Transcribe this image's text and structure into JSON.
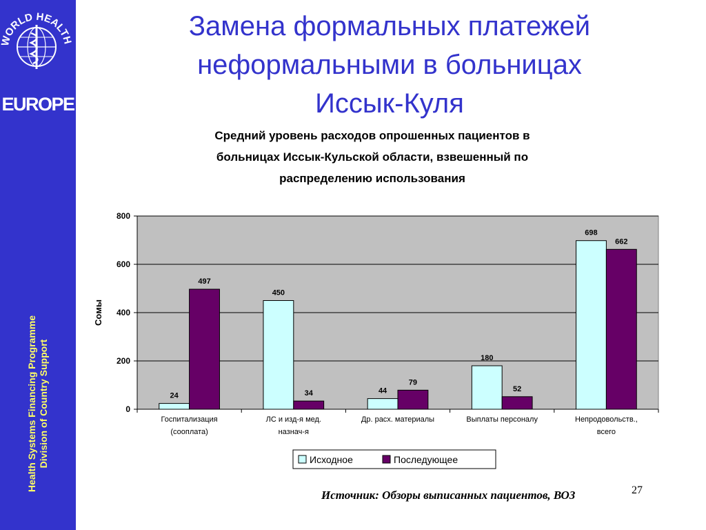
{
  "sidebar": {
    "logo_text": "EUROPE",
    "logo_ring_text": "WORLD HEALTH ORGANIZATION",
    "vertical_line1": "Health Systems Financing Programme",
    "vertical_line2": "Division of Country Support",
    "colors": {
      "background": "#3333cc",
      "text": "#ffff66"
    }
  },
  "slide": {
    "title_lines": [
      "Замена формальных платежей",
      "неформальными в больницах",
      "Иссык-Куля"
    ],
    "title_color": "#3333cc",
    "source": "Источник:  Обзоры выписанных пациентов, ВОЗ",
    "page_number": "27"
  },
  "chart_data": {
    "type": "bar",
    "title_lines": [
      "Средний уровень расходов опрошенных пациентов в",
      "больницах Иссык-Кульской области, взвешенный по",
      "распределению использования"
    ],
    "ylabel": "Сомы",
    "ylim": [
      0,
      800
    ],
    "yticks": [
      0,
      200,
      400,
      600,
      800
    ],
    "grid": true,
    "legend_position": "bottom",
    "categories": [
      [
        "Госпитализация",
        "(сооплата)"
      ],
      [
        "ЛС и изд-я мед.",
        "назнач-я"
      ],
      [
        "Др. расх. материалы"
      ],
      [
        "Выплаты персоналу"
      ],
      [
        "Непродовольств.,",
        "всего"
      ]
    ],
    "series": [
      {
        "name": "Исходное",
        "values": [
          24,
          450,
          44,
          180,
          698
        ],
        "color": "#ccffff"
      },
      {
        "name": "Последующее",
        "values": [
          497,
          34,
          79,
          52,
          662
        ],
        "color": "#660066"
      }
    ],
    "plot_background": "#c0c0c0"
  }
}
